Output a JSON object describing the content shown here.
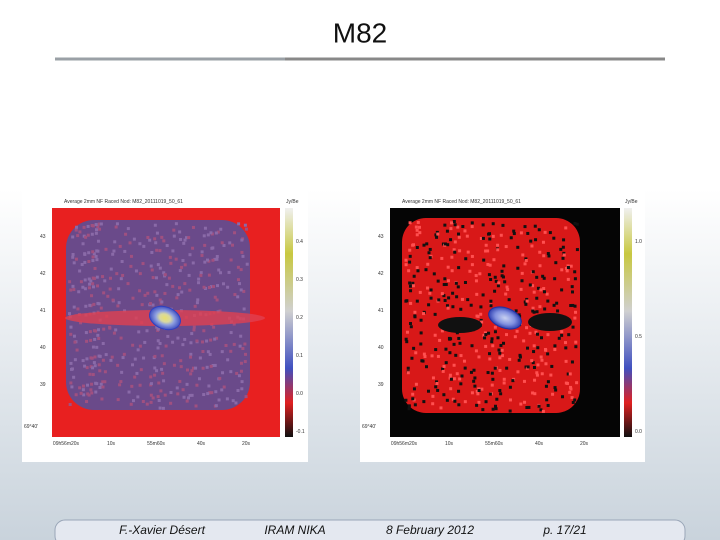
{
  "header": {
    "title": "M82"
  },
  "panels": [
    {
      "title": "Average 2mm NF Raced Nod: M82_20111019_50_61",
      "unit": "Jy/Be",
      "colorbar_ticks": [
        "0.4",
        "0.3",
        "0.2",
        "0.1",
        "0.0",
        "-0.1"
      ],
      "y_ticks": [
        "43",
        "42",
        "41",
        "40",
        "39"
      ],
      "y_label": "69°40'",
      "x_ticks": [
        "09h56m20s",
        "10s",
        "55m60s",
        "40s",
        "20s"
      ]
    },
    {
      "title": "Average 2mm NF Raced Nod: M82_20111019_50_61",
      "unit": "Jy/Be",
      "colorbar_ticks": [
        "1.0",
        "0.5",
        "0.0"
      ],
      "y_ticks": [
        "43",
        "42",
        "41",
        "40",
        "39"
      ],
      "y_label": "69°40'",
      "x_ticks": [
        "09h56m20s",
        "10s",
        "55m60s",
        "40s",
        "20s"
      ]
    }
  ],
  "footer": {
    "author": "F.-Xavier Désert",
    "project": "IRAM NIKA",
    "date": "8 February 2012",
    "page": "p. 17/21"
  }
}
